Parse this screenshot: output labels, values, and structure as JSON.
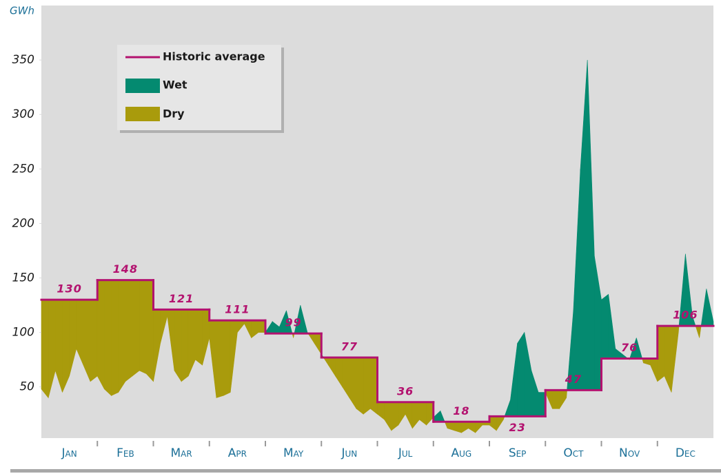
{
  "chart_data": {
    "type": "area",
    "y_label": "GWh",
    "categories": [
      "Jan",
      "Feb",
      "Mar",
      "Apr",
      "May",
      "Jun",
      "Jul",
      "Aug",
      "Sep",
      "Oct",
      "Nov",
      "Dec"
    ],
    "xlim": [
      0,
      12
    ],
    "ylim": [
      3,
      400
    ],
    "yticks": [
      50,
      100,
      150,
      200,
      250,
      300,
      350
    ],
    "average": {
      "name": "Historic average",
      "color": "#b3126f",
      "values": [
        130,
        148,
        121,
        111,
        99,
        77,
        36,
        18,
        23,
        47,
        76,
        106
      ]
    },
    "wet": {
      "name": "Wet",
      "color": "#048a70"
    },
    "dry": {
      "name": "Dry",
      "color": "#a99b0c"
    },
    "inflow": {
      "x": [
        0,
        0.125,
        0.25,
        0.375,
        0.5,
        0.625,
        0.75,
        0.875,
        1,
        1.125,
        1.25,
        1.375,
        1.5,
        1.625,
        1.75,
        1.875,
        2,
        2.125,
        2.25,
        2.375,
        2.5,
        2.625,
        2.75,
        2.875,
        3,
        3.125,
        3.25,
        3.375,
        3.5,
        3.625,
        3.75,
        3.875,
        4,
        4.125,
        4.25,
        4.375,
        4.5,
        4.625,
        4.75,
        4.875,
        5,
        5.125,
        5.25,
        5.375,
        5.5,
        5.625,
        5.75,
        5.875,
        6,
        6.125,
        6.25,
        6.375,
        6.5,
        6.625,
        6.75,
        6.875,
        7,
        7.125,
        7.25,
        7.375,
        7.5,
        7.625,
        7.75,
        7.875,
        8,
        8.125,
        8.25,
        8.375,
        8.5,
        8.625,
        8.75,
        8.875,
        9,
        9.125,
        9.25,
        9.375,
        9.5,
        9.625,
        9.75,
        9.875,
        10,
        10.125,
        10.25,
        10.375,
        10.5,
        10.625,
        10.75,
        10.875,
        11,
        11.125,
        11.25,
        11.375,
        11.5,
        11.625,
        11.75,
        11.875,
        12
      ],
      "values": [
        48,
        40,
        65,
        45,
        60,
        85,
        70,
        55,
        60,
        48,
        42,
        45,
        55,
        60,
        65,
        62,
        55,
        90,
        115,
        65,
        55,
        60,
        75,
        70,
        95,
        40,
        42,
        45,
        100,
        108,
        95,
        100,
        100,
        110,
        105,
        120,
        95,
        125,
        100,
        90,
        80,
        70,
        60,
        50,
        40,
        30,
        25,
        30,
        25,
        20,
        10,
        15,
        25,
        12,
        20,
        15,
        22,
        28,
        12,
        10,
        8,
        12,
        8,
        15,
        15,
        10,
        20,
        38,
        90,
        100,
        65,
        45,
        45,
        30,
        30,
        40,
        120,
        250,
        350,
        170,
        130,
        135,
        85,
        80,
        75,
        95,
        72,
        70,
        55,
        60,
        45,
        100,
        172,
        115,
        95,
        140,
        110
      ]
    }
  }
}
